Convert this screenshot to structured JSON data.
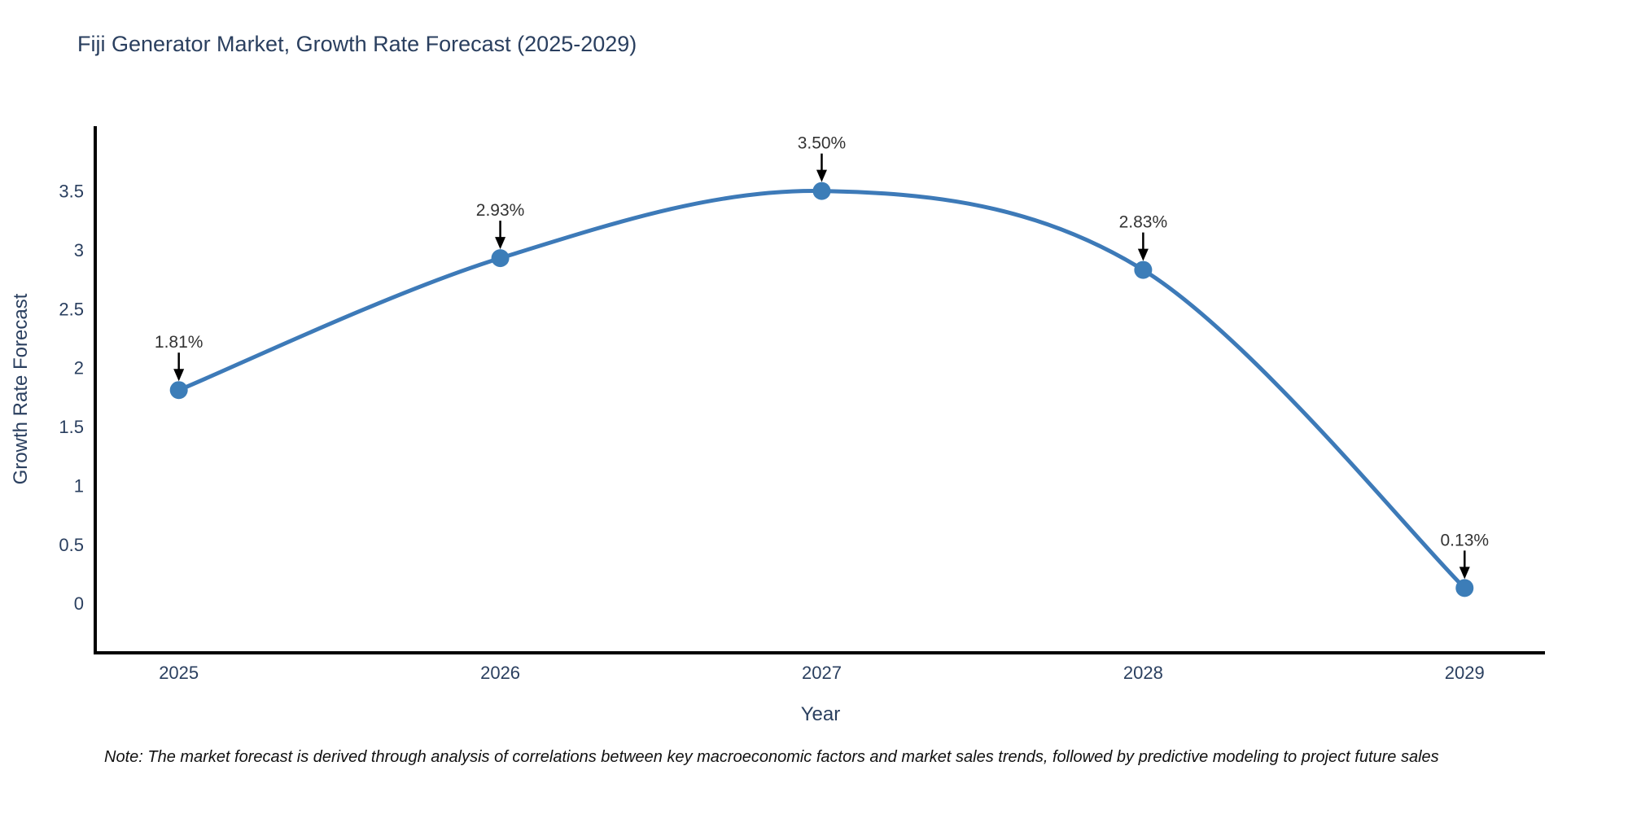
{
  "page": {
    "note": "Note: The market forecast is derived through analysis of correlations between key macroeconomic factors and market sales trends, followed by predictive modeling to project future sales"
  },
  "chart_data": {
    "type": "line",
    "title": "Fiji Generator Market, Growth Rate Forecast (2025-2029)",
    "xlabel": "Year",
    "ylabel": "Growth Rate Forecast",
    "x": [
      2025,
      2026,
      2027,
      2028,
      2029
    ],
    "series": [
      {
        "name": "Growth Rate Forecast",
        "values": [
          1.81,
          2.93,
          3.5,
          2.83,
          0.13
        ]
      }
    ],
    "point_labels": [
      "1.81%",
      "2.93%",
      "3.50%",
      "2.83%",
      "0.13%"
    ],
    "xticks": {
      "values": [
        2025,
        2026,
        2027,
        2028,
        2029
      ],
      "labels": [
        "2025",
        "2026",
        "2027",
        "2028",
        "2029"
      ]
    },
    "yticks": {
      "values": [
        0,
        0.5,
        1,
        1.5,
        2,
        2.5,
        3,
        3.5
      ],
      "labels": [
        "0",
        "0.5",
        "1",
        "1.5",
        "2",
        "2.5",
        "3",
        "3.5"
      ]
    },
    "xlim": [
      2024.74,
      2029.25
    ],
    "ylim": [
      -0.42,
      4.05
    ],
    "grid": false,
    "legend": null,
    "smooth": true,
    "annotation_style": "down-arrow",
    "colors": {
      "line": "#3d7ab8",
      "marker": "#3c7db8",
      "annotation_text": "#333333",
      "arrow": "#000000",
      "axis_text": "#2a3f5f",
      "spine": "#000000",
      "background": "#ffffff",
      "note_text": "#111111"
    }
  }
}
